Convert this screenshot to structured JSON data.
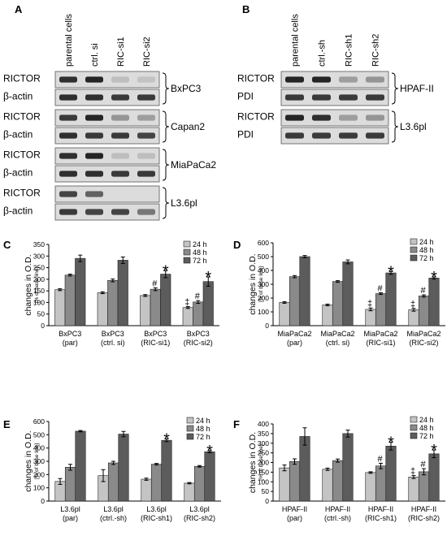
{
  "panel_a": {
    "label": "A",
    "columns": [
      "parental cells",
      "ctrl. si",
      "RIC-si1",
      "RIC-si2"
    ],
    "groups": [
      {
        "cell_line": "BxPC3",
        "rows": [
          "RICTOR",
          "β-actin"
        ],
        "bands": [
          [
            0.85,
            0.9,
            0.15,
            0.12
          ],
          [
            0.85,
            0.85,
            0.8,
            0.8
          ]
        ]
      },
      {
        "cell_line": "Capan2",
        "rows": [
          "RICTOR",
          "β-actin"
        ],
        "bands": [
          [
            0.8,
            0.9,
            0.35,
            0.3
          ],
          [
            0.85,
            0.8,
            0.8,
            0.75
          ]
        ]
      },
      {
        "cell_line": "MiaPaCa2",
        "rows": [
          "RICTOR",
          "β-actin"
        ],
        "bands": [
          [
            0.85,
            0.9,
            0.15,
            0.15
          ],
          [
            0.85,
            0.85,
            0.8,
            0.8
          ]
        ]
      },
      {
        "cell_line": "L3.6pl",
        "rows": [
          "RICTOR",
          "β-actin"
        ],
        "bands": [
          [
            0.75,
            0.6,
            0.0,
            0.0
          ],
          [
            0.8,
            0.75,
            0.75,
            0.5
          ]
        ]
      }
    ]
  },
  "panel_b": {
    "label": "B",
    "columns": [
      "parental cells",
      "ctrl.-sh",
      "RIC-sh1",
      "RIC-sh2"
    ],
    "groups": [
      {
        "cell_line": "HPAF-II",
        "rows": [
          "RICTOR",
          "PDI"
        ],
        "bands": [
          [
            0.9,
            0.9,
            0.3,
            0.35
          ],
          [
            0.8,
            0.8,
            0.8,
            0.8
          ]
        ]
      },
      {
        "cell_line": "L3.6pl",
        "rows": [
          "RICTOR",
          "PDI"
        ],
        "bands": [
          [
            0.9,
            0.85,
            0.3,
            0.35
          ],
          [
            0.8,
            0.8,
            0.8,
            0.8
          ]
        ]
      }
    ]
  },
  "chart_data": [
    {
      "panel": "C",
      "type": "bar",
      "ylabel": "changes in O.D.",
      "ysublabel": "[% of base line]",
      "ylim": [
        0,
        350
      ],
      "yticks": [
        0,
        50,
        100,
        150,
        200,
        250,
        300,
        350
      ],
      "categories": [
        [
          "BxPC3",
          "(par)"
        ],
        [
          "BxPC3",
          "(ctrl. si)"
        ],
        [
          "BxPC3",
          "(RIC-si1)"
        ],
        [
          "BxPC3",
          "(RIC-si2)"
        ]
      ],
      "series": [
        {
          "name": "24 h",
          "color": "#c4c4c4",
          "values": [
            155,
            142,
            130,
            78
          ],
          "err": [
            4,
            4,
            4,
            4
          ]
        },
        {
          "name": "48 h",
          "color": "#8a8a8a",
          "values": [
            218,
            195,
            157,
            102
          ],
          "err": [
            4,
            6,
            6,
            6
          ]
        },
        {
          "name": "72 h",
          "color": "#5c5c5c",
          "values": [
            290,
            282,
            222,
            190
          ],
          "err": [
            14,
            14,
            15,
            20
          ]
        }
      ],
      "annotations": [
        {
          "text": "#",
          "cat": 2,
          "series": 1
        },
        {
          "text": "*",
          "cat": 2,
          "series": 2
        },
        {
          "text": "‡",
          "cat": 3,
          "series": 0
        },
        {
          "text": "#",
          "cat": 3,
          "series": 1
        },
        {
          "text": "*",
          "cat": 3,
          "series": 2
        }
      ]
    },
    {
      "panel": "D",
      "type": "bar",
      "ylabel": "changes in O.D.",
      "ysublabel": "[% of base line]",
      "ylim": [
        0,
        600
      ],
      "yticks": [
        0,
        100,
        200,
        300,
        400,
        500,
        600
      ],
      "categories": [
        [
          "MiaPaCa2",
          "(par)"
        ],
        [
          "MiaPaCa2",
          "(ctrl. si)"
        ],
        [
          "MiaPaCa2",
          "(RIC-si1)"
        ],
        [
          "MiaPaCa2",
          "(RIC-si2)"
        ]
      ],
      "series": [
        {
          "name": "24 h",
          "color": "#c4c4c4",
          "values": [
            168,
            150,
            118,
            115
          ],
          "err": [
            6,
            6,
            10,
            10
          ]
        },
        {
          "name": "48 h",
          "color": "#8a8a8a",
          "values": [
            355,
            320,
            232,
            215
          ],
          "err": [
            8,
            6,
            6,
            8
          ]
        },
        {
          "name": "72 h",
          "color": "#5c5c5c",
          "values": [
            500,
            462,
            382,
            345
          ],
          "err": [
            8,
            14,
            10,
            8
          ]
        }
      ],
      "annotations": [
        {
          "text": "‡",
          "cat": 2,
          "series": 0
        },
        {
          "text": "#",
          "cat": 2,
          "series": 1
        },
        {
          "text": "*",
          "cat": 2,
          "series": 2
        },
        {
          "text": "‡",
          "cat": 3,
          "series": 0
        },
        {
          "text": "#",
          "cat": 3,
          "series": 1
        },
        {
          "text": "*",
          "cat": 3,
          "series": 2
        }
      ]
    },
    {
      "panel": "E",
      "type": "bar",
      "ylabel": "changes in O.D.",
      "ysublabel": "[% of base line]",
      "ylim": [
        0,
        600
      ],
      "yticks": [
        0,
        100,
        200,
        300,
        400,
        500,
        600
      ],
      "categories": [
        [
          "L3.6pl",
          "(par)"
        ],
        [
          "L3.6pl",
          "(ctrl.-sh)"
        ],
        [
          "L3.6pl",
          "(RIC-sh1)"
        ],
        [
          "L3.6pl",
          "(RIC-sh2)"
        ]
      ],
      "series": [
        {
          "name": "24 h",
          "color": "#c4c4c4",
          "values": [
            148,
            192,
            165,
            135
          ],
          "err": [
            22,
            45,
            8,
            5
          ]
        },
        {
          "name": "48 h",
          "color": "#8a8a8a",
          "values": [
            255,
            288,
            278,
            262
          ],
          "err": [
            22,
            12,
            6,
            6
          ]
        },
        {
          "name": "72 h",
          "color": "#5c5c5c",
          "values": [
            527,
            505,
            458,
            372
          ],
          "err": [
            5,
            20,
            10,
            8
          ]
        }
      ],
      "annotations": [
        {
          "text": "*",
          "cat": 2,
          "series": 2
        },
        {
          "text": "*",
          "cat": 3,
          "series": 2
        }
      ]
    },
    {
      "panel": "F",
      "type": "bar",
      "ylabel": "changes in O.D.",
      "ysublabel": "[% of base line]",
      "ylim": [
        0,
        400
      ],
      "yticks": [
        0,
        50,
        100,
        150,
        200,
        250,
        300,
        350,
        400
      ],
      "categories": [
        [
          "HPAF-II",
          "(par)"
        ],
        [
          "HPAF-II",
          "(ctrl.-sh)"
        ],
        [
          "HPAF-II",
          "(RIC-sh1)"
        ],
        [
          "HPAF-II",
          "(RIC-sh2)"
        ]
      ],
      "series": [
        {
          "name": "24 h",
          "color": "#c4c4c4",
          "values": [
            172,
            165,
            148,
            125
          ],
          "err": [
            15,
            6,
            4,
            8
          ]
        },
        {
          "name": "48 h",
          "color": "#8a8a8a",
          "values": [
            205,
            210,
            182,
            152
          ],
          "err": [
            14,
            8,
            14,
            16
          ]
        },
        {
          "name": "72 h",
          "color": "#5c5c5c",
          "values": [
            335,
            350,
            285,
            245
          ],
          "err": [
            45,
            18,
            20,
            20
          ]
        }
      ],
      "annotations": [
        {
          "text": "#",
          "cat": 2,
          "series": 1
        },
        {
          "text": "*",
          "cat": 2,
          "series": 2
        },
        {
          "text": "‡",
          "cat": 3,
          "series": 0
        },
        {
          "text": "#",
          "cat": 3,
          "series": 1
        },
        {
          "text": "*",
          "cat": 3,
          "series": 2
        }
      ]
    }
  ]
}
